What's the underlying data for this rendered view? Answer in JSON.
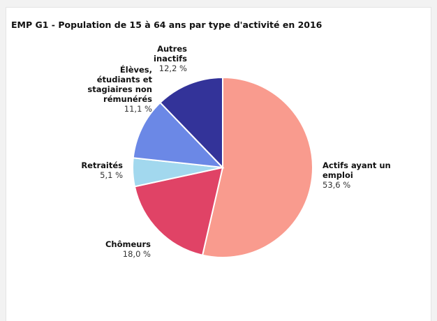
{
  "chart_data": {
    "type": "pie",
    "title": "EMP G1 - Population de 15 à 64 ans par type d'activité en 2016",
    "categories": [
      "Actifs ayant un emploi",
      "Chômeurs",
      "Retraités",
      "Élèves, étudiants et stagiaires non rémunérés",
      "Autres inactifs"
    ],
    "values": [
      53.6,
      18.0,
      5.1,
      11.1,
      12.2
    ],
    "value_labels": [
      "53,6 %",
      "18,0 %",
      "5,1 %",
      "11,1 %",
      "12,2 %"
    ],
    "colors": [
      "#f99b8e",
      "#e04366",
      "#a2d8ee",
      "#6b88e6",
      "#333399"
    ]
  }
}
